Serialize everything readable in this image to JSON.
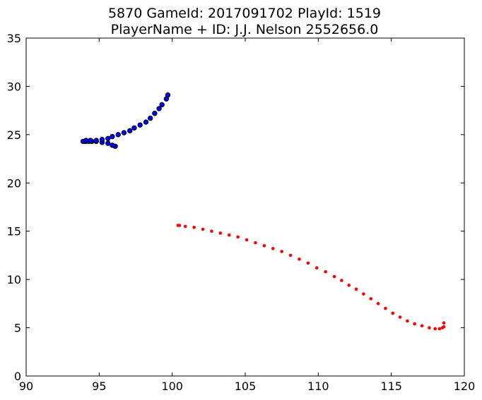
{
  "chart_data": {
    "type": "scatter",
    "title": "5870 GameId: 2017091702 PlayId: 1519",
    "subtitle": "PlayerName + ID: J.J. Nelson 2552656.0",
    "xlabel": "",
    "ylabel": "",
    "xlim": [
      90,
      120
    ],
    "ylim": [
      0,
      35
    ],
    "xticks": [
      "90",
      "95",
      "100",
      "105",
      "110",
      "115",
      "120"
    ],
    "yticks": [
      "0",
      "5",
      "10",
      "15",
      "20",
      "25",
      "30",
      "35"
    ],
    "grid": false,
    "legend": "none",
    "series": [
      {
        "color": "#0000ff",
        "marker": "circle-large",
        "points": [
          [
            96.1,
            23.8
          ],
          [
            95.9,
            23.9
          ],
          [
            95.6,
            24.1
          ],
          [
            95.2,
            24.2
          ],
          [
            94.8,
            24.3
          ],
          [
            94.5,
            24.3
          ],
          [
            94.3,
            24.3
          ],
          [
            94.1,
            24.3
          ],
          [
            94.0,
            24.3
          ],
          [
            93.9,
            24.3
          ],
          [
            94.1,
            24.4
          ],
          [
            94.4,
            24.4
          ],
          [
            94.8,
            24.4
          ],
          [
            95.2,
            24.5
          ],
          [
            95.6,
            24.6
          ],
          [
            95.9,
            24.8
          ],
          [
            96.3,
            25.0
          ],
          [
            96.7,
            25.2
          ],
          [
            97.1,
            25.4
          ],
          [
            97.4,
            25.7
          ],
          [
            97.8,
            26.0
          ],
          [
            98.2,
            26.3
          ],
          [
            98.5,
            26.7
          ],
          [
            98.8,
            27.2
          ],
          [
            99.1,
            27.7
          ],
          [
            99.3,
            28.1
          ],
          [
            99.6,
            28.7
          ],
          [
            99.7,
            29.1
          ]
        ]
      },
      {
        "color": "#ff0000",
        "marker": "dot-small",
        "points": [
          [
            100.5,
            15.6
          ],
          [
            100.9,
            15.5
          ],
          [
            101.5,
            15.4
          ],
          [
            102.1,
            15.2
          ],
          [
            102.7,
            15.0
          ],
          [
            103.3,
            14.8
          ],
          [
            103.9,
            14.6
          ],
          [
            104.5,
            14.4
          ],
          [
            105.1,
            14.1
          ],
          [
            105.7,
            13.8
          ],
          [
            106.3,
            13.5
          ],
          [
            106.9,
            13.2
          ],
          [
            107.5,
            12.9
          ],
          [
            108.1,
            12.5
          ],
          [
            108.7,
            12.1
          ],
          [
            109.3,
            11.7
          ],
          [
            109.9,
            11.2
          ],
          [
            110.5,
            10.8
          ],
          [
            111.1,
            10.3
          ],
          [
            111.6,
            9.9
          ],
          [
            112.1,
            9.4
          ],
          [
            112.6,
            9.0
          ],
          [
            113.1,
            8.5
          ],
          [
            113.6,
            8.0
          ],
          [
            114.1,
            7.5
          ],
          [
            114.6,
            7.0
          ],
          [
            115.1,
            6.5
          ],
          [
            115.6,
            6.1
          ],
          [
            116.1,
            5.7
          ],
          [
            116.6,
            5.4
          ],
          [
            117.1,
            5.2
          ],
          [
            117.6,
            5.0
          ],
          [
            118.0,
            4.9
          ],
          [
            118.3,
            4.9
          ],
          [
            118.5,
            5.0
          ],
          [
            118.6,
            5.1
          ],
          [
            118.6,
            5.5
          ],
          [
            100.4,
            15.6
          ]
        ]
      }
    ]
  }
}
